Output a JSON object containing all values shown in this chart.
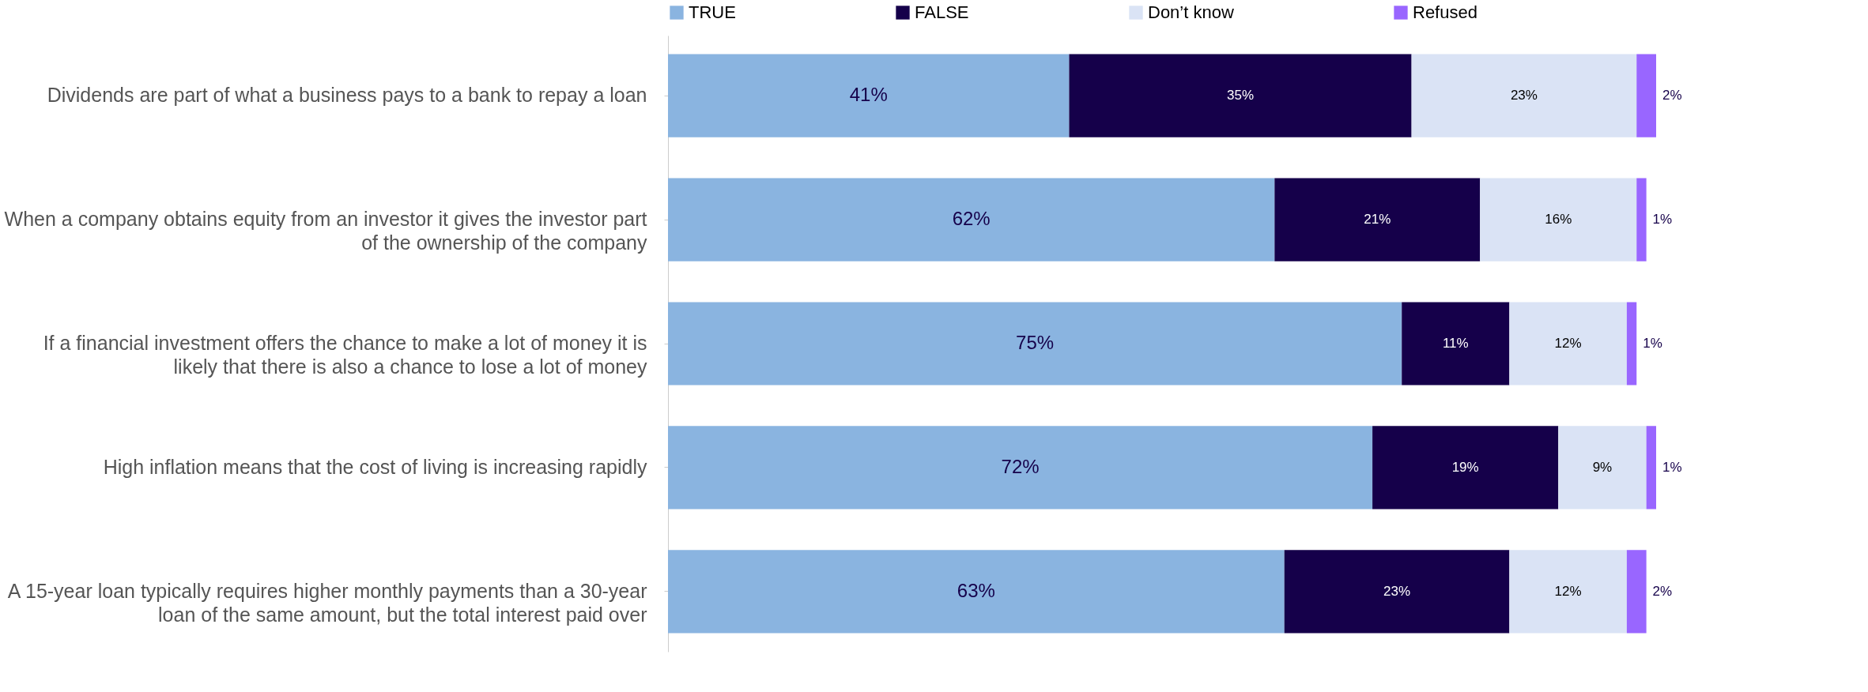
{
  "chart_data": {
    "type": "bar",
    "orientation": "horizontal",
    "stacked": true,
    "legend": "top",
    "grid": false,
    "categories": [
      "Dividends are part of what a business pays to a bank to repay a loan",
      "When a company obtains equity from an investor it gives the investor part of the ownership of the company",
      "If a financial investment offers the chance to make a lot of money it is likely that there is also a chance to lose a lot of money",
      "High inflation means that the cost of living is increasing rapidly",
      "A 15-year loan typically requires higher monthly payments than a 30-year loan of the same amount, but the total interest paid over"
    ],
    "series": [
      {
        "name": "TRUE",
        "color": "#8ab4e0",
        "values": [
          41,
          62,
          75,
          72,
          63
        ],
        "value_labels": [
          "41%",
          "62%",
          "75%",
          "72%",
          "63%"
        ]
      },
      {
        "name": "FALSE",
        "color": "#15004a",
        "values": [
          35,
          21,
          11,
          19,
          23
        ],
        "value_labels": [
          "35%",
          "21%",
          "11%",
          "19%",
          "23%"
        ]
      },
      {
        "name": "Don’t know",
        "color": "#dae3f5",
        "values": [
          23,
          16,
          12,
          9,
          12
        ],
        "value_labels": [
          "23%",
          "16%",
          "12%",
          "9%",
          "12%"
        ]
      },
      {
        "name": "Refused",
        "color": "#9966ff",
        "values": [
          2,
          1,
          1,
          1,
          2
        ],
        "value_labels": [
          "2%",
          "1%",
          "1%",
          "1%",
          "2%"
        ]
      }
    ]
  }
}
